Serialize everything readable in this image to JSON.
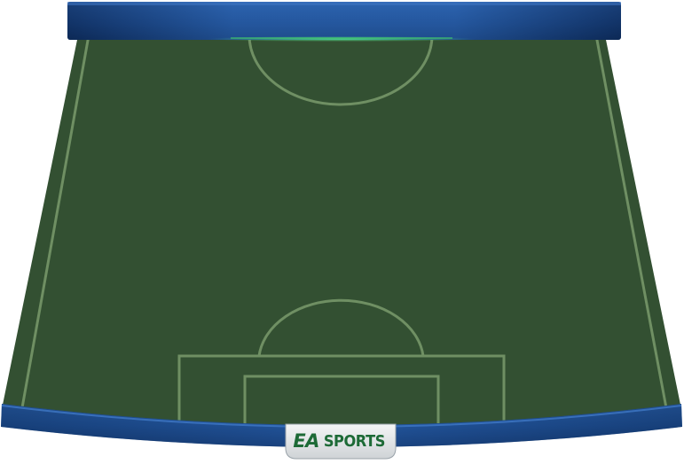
{
  "brand": {
    "logo_ea": "EA",
    "logo_sports": "SPORTS"
  },
  "colors": {
    "pitch": "#335032",
    "lines": "#6f8f63",
    "frame_blue": "#1f4f8f",
    "frame_dark": "#0f2c58",
    "accent_green": "#3fc46a",
    "badge": "#e6e8ea",
    "logo": "#1d6a36"
  },
  "icons": {
    "brand_logo": "ea-sports-logo"
  }
}
